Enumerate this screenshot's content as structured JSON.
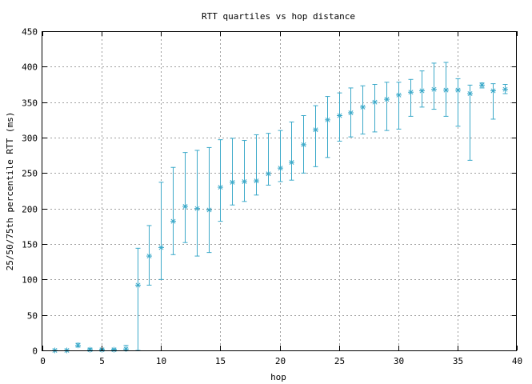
{
  "chart_data": {
    "type": "scatter",
    "title": "RTT quartiles vs hop distance",
    "xlabel": "hop",
    "ylabel": "25/50/75th percentile RTT (ms)",
    "xlim": [
      0,
      40
    ],
    "ylim": [
      0,
      450
    ],
    "xticks": [
      0,
      5,
      10,
      15,
      20,
      25,
      30,
      35,
      40
    ],
    "yticks": [
      0,
      50,
      100,
      150,
      200,
      250,
      300,
      350,
      400,
      450
    ],
    "grid": true,
    "legend": "none",
    "color": "#3ba9c9",
    "series": [
      {
        "marker": "asterisk",
        "x": [
          1,
          2,
          3,
          4,
          5,
          6,
          7,
          8,
          9,
          10,
          11,
          12,
          13,
          14,
          15,
          16,
          17,
          18,
          19,
          20,
          21,
          22,
          23,
          24,
          25,
          26,
          27,
          28,
          29,
          30,
          31,
          32,
          33,
          34,
          35,
          36,
          37,
          38,
          39
        ],
        "median": [
          0,
          0,
          7,
          1,
          1,
          1,
          2,
          92,
          133,
          145,
          182,
          203,
          200,
          198,
          230,
          237,
          238,
          239,
          249,
          257,
          265,
          290,
          311,
          325,
          331,
          335,
          343,
          350,
          354,
          360,
          364,
          366,
          368,
          367,
          367,
          362,
          374,
          366,
          368
        ],
        "q25": [
          0,
          0,
          5,
          0,
          0,
          0,
          0,
          0,
          92,
          100,
          135,
          152,
          133,
          138,
          182,
          205,
          210,
          219,
          233,
          238,
          240,
          250,
          259,
          272,
          295,
          301,
          305,
          308,
          310,
          312,
          330,
          343,
          340,
          330,
          316,
          268,
          370,
          326,
          362
        ],
        "q75": [
          0,
          0,
          10,
          3,
          2,
          2,
          7,
          144,
          176,
          237,
          258,
          279,
          282,
          286,
          297,
          299,
          296,
          304,
          306,
          310,
          322,
          331,
          345,
          358,
          363,
          370,
          373,
          375,
          378,
          378,
          382,
          394,
          405,
          406,
          383,
          374,
          377,
          376,
          375
        ]
      }
    ]
  }
}
